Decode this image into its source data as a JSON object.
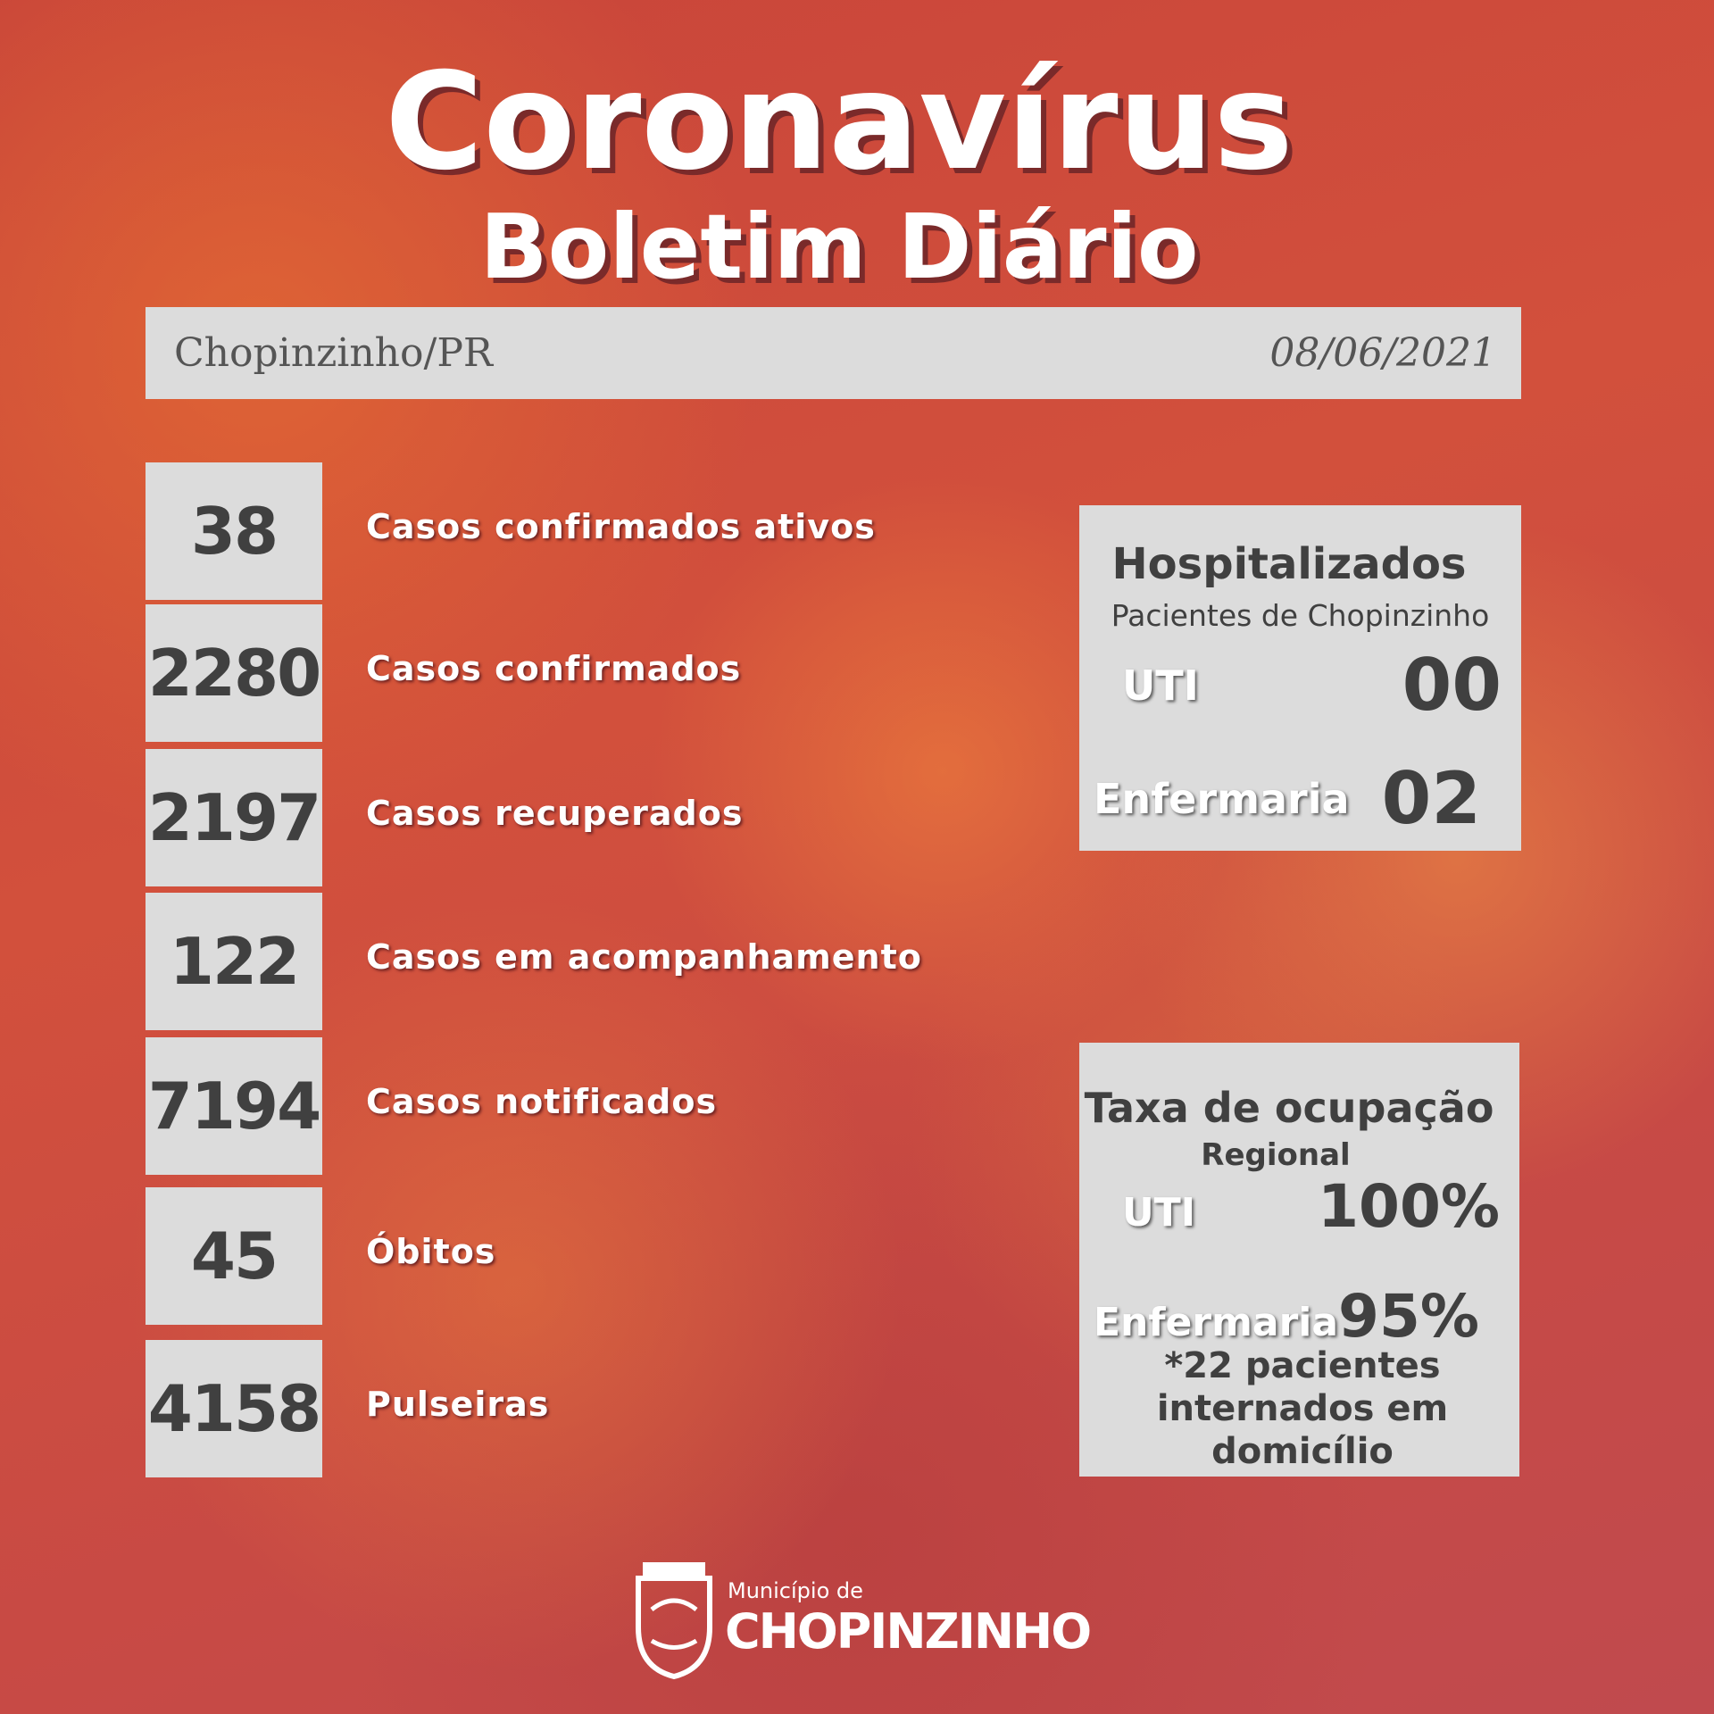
{
  "title": "Coronavírus",
  "subtitle": "Boletim Diário",
  "header": {
    "location": "Chopinzinho/PR",
    "date": "08/06/2021"
  },
  "stats": [
    {
      "value": "38",
      "label": "Casos confirmados ativos"
    },
    {
      "value": "2280",
      "label": "Casos confirmados"
    },
    {
      "value": "2197",
      "label": "Casos recuperados"
    },
    {
      "value": "122",
      "label": "Casos em acompanhamento"
    },
    {
      "value": "7194",
      "label": "Casos notificados"
    },
    {
      "value": "45",
      "label": "Óbitos"
    },
    {
      "value": "4158",
      "label": "Pulseiras"
    }
  ],
  "hospitalizados": {
    "title": "Hospitalizados",
    "subtitle": "Pacientes de Chopinzinho",
    "rows": [
      {
        "label": "UTI",
        "value": "00"
      },
      {
        "label": "Enfermaria",
        "value": "02"
      }
    ]
  },
  "ocupacao": {
    "title": "Taxa de ocupação",
    "subtitle": "Regional",
    "rows": [
      {
        "label": "UTI",
        "value": "100%"
      },
      {
        "label": "Enfermaria",
        "value": "95%"
      }
    ],
    "note": "*22 pacientes internados em domicílio"
  },
  "footer": {
    "prefix": "Município de",
    "name": "CHOPINZINHO"
  }
}
